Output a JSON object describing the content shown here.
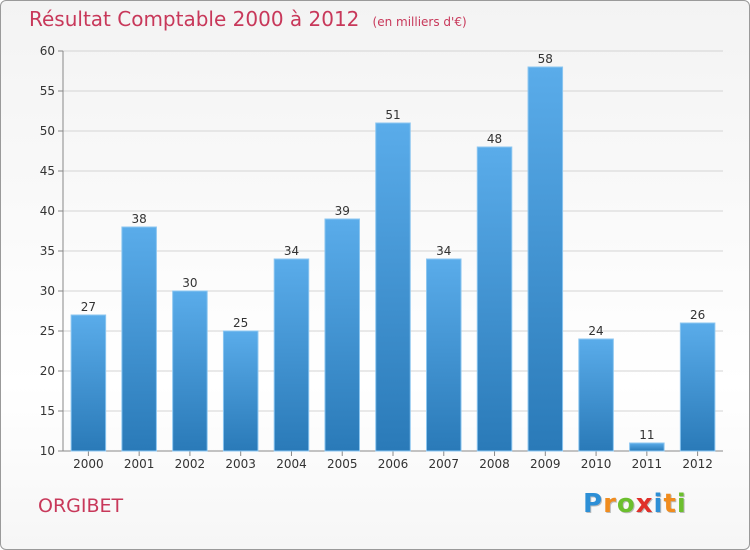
{
  "chart_data": {
    "type": "bar",
    "title": "Résultat Comptable 2000 à 2012",
    "subtitle": "(en milliers d'€)",
    "categories": [
      "2000",
      "2001",
      "2002",
      "2003",
      "2004",
      "2005",
      "2006",
      "2007",
      "2008",
      "2009",
      "2010",
      "2011",
      "2012"
    ],
    "values": [
      27,
      38,
      30,
      25,
      34,
      39,
      51,
      34,
      48,
      58,
      24,
      11,
      26
    ],
    "data_labels": [
      "27",
      "38",
      "30",
      "25",
      "34",
      "39",
      "51",
      "34",
      "48",
      "58",
      "24",
      "11",
      "26"
    ],
    "ylim": [
      10,
      60
    ],
    "yticks": [
      10,
      15,
      20,
      25,
      30,
      35,
      40,
      45,
      50,
      55,
      60
    ],
    "grid": true,
    "legend": "none",
    "bar_color_top": "#5aacea",
    "bar_color_bottom": "#2a7ab8"
  },
  "location": "ORGIBET",
  "brand": {
    "letters": [
      "P",
      "r",
      "o",
      "x",
      "i",
      "t",
      "i"
    ],
    "colors": [
      "#2d8fd6",
      "#f08c1e",
      "#6cbf2e",
      "#e0302a",
      "#2d8fd6",
      "#f08c1e",
      "#6cbf2e"
    ]
  },
  "title_color": "#c8385a"
}
